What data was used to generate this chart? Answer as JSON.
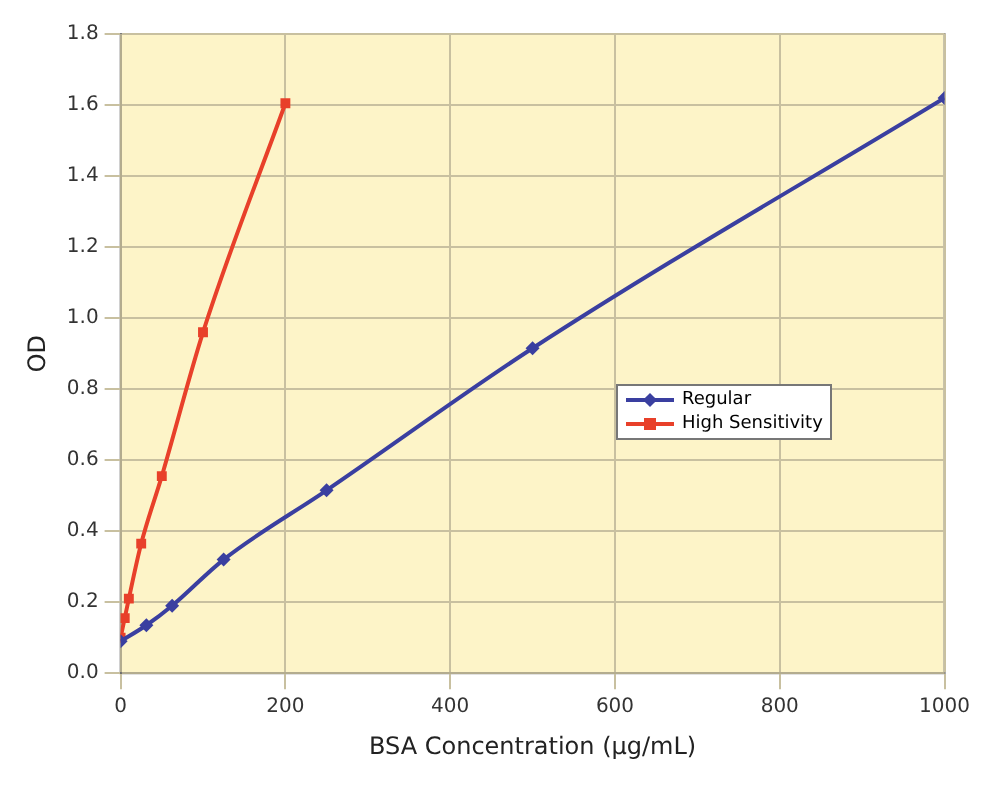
{
  "chart_data": {
    "type": "line",
    "xlabel": "BSA Concentration (µg/mL)",
    "ylabel": "OD",
    "series": [
      {
        "name": "Regular",
        "color": "#3a3fa0",
        "marker": "diamond",
        "x": [
          0,
          31.25,
          62.5,
          125,
          250,
          500,
          1000
        ],
        "values": [
          0.09,
          0.135,
          0.19,
          0.32,
          0.515,
          0.915,
          1.62
        ]
      },
      {
        "name": "High Sensitivity",
        "color": "#e8402a",
        "marker": "square",
        "x": [
          0,
          5,
          10,
          25,
          50,
          100,
          200
        ],
        "values": [
          0.1,
          0.155,
          0.21,
          0.365,
          0.555,
          0.96,
          1.605
        ]
      }
    ],
    "xlim": [
      0,
      1000
    ],
    "xticks": [
      0,
      200,
      400,
      600,
      800,
      1000
    ],
    "ylim": [
      0,
      1.8
    ],
    "yticks": [
      {
        "value": 0,
        "label": "0.0"
      },
      {
        "value": 0.2,
        "label": "0.2"
      },
      {
        "value": 0.4,
        "label": "0.4"
      },
      {
        "value": 0.6,
        "label": "0.6"
      },
      {
        "value": 0.8,
        "label": "0.8"
      },
      {
        "value": 1,
        "label": "1.0"
      },
      {
        "value": 1.2,
        "label": "1.2"
      },
      {
        "value": 1.4,
        "label": "1.4"
      },
      {
        "value": 1.6,
        "label": "1.6"
      },
      {
        "value": 1.8,
        "label": "1.8"
      }
    ],
    "grid": true,
    "legend": "right",
    "line_style": "solid"
  }
}
